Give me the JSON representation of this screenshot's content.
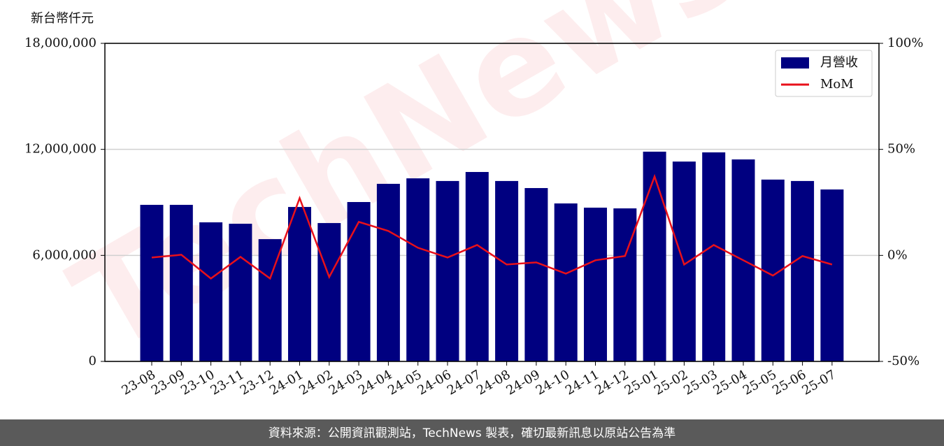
{
  "chart_data": {
    "type": "bar",
    "y_label": "新台幣仟元",
    "watermark": "TechNews",
    "footer": "資料來源：公開資訊觀測站，TechNews 製表，確切最新訊息以原站公告為準",
    "categories": [
      "23-08",
      "23-09",
      "23-10",
      "23-11",
      "23-12",
      "24-01",
      "24-02",
      "24-03",
      "24-04",
      "24-05",
      "24-06",
      "24-07",
      "24-08",
      "24-09",
      "24-10",
      "24-11",
      "24-12",
      "25-01",
      "25-02",
      "25-03",
      "25-04",
      "25-05",
      "25-06",
      "25-07"
    ],
    "series": [
      {
        "name": "月營收",
        "type": "bar",
        "color": "#000080",
        "values": [
          8860000,
          8860000,
          7870000,
          7790000,
          6920000,
          8740000,
          7830000,
          9020000,
          10050000,
          10360000,
          10210000,
          10720000,
          10210000,
          9810000,
          8940000,
          8700000,
          8660000,
          11870000,
          11310000,
          11830000,
          11430000,
          10290000,
          10210000,
          9730000
        ]
      },
      {
        "name": "MoM",
        "type": "line",
        "axis": "y2",
        "color": "#e8101a",
        "values": [
          -1.0,
          0.3,
          -10.9,
          -0.7,
          -10.9,
          27.0,
          -10.2,
          15.8,
          11.5,
          3.6,
          -1.0,
          4.9,
          -4.3,
          -3.3,
          -8.6,
          -2.3,
          -0.3,
          37.2,
          -4.3,
          4.9,
          -2.3,
          -9.5,
          -0.3,
          -4.3
        ]
      }
    ],
    "ylim": [
      0,
      18000000
    ],
    "yticks": [
      {
        "value": 0,
        "label": "0"
      },
      {
        "value": 6000000,
        "label": "6,000,000"
      },
      {
        "value": 12000000,
        "label": "12,000,000"
      },
      {
        "value": 18000000,
        "label": "18,000,000"
      }
    ],
    "y2lim": [
      -50,
      100
    ],
    "y2ticks": [
      {
        "value": -50,
        "label": "-50%"
      },
      {
        "value": 0,
        "label": "0%"
      },
      {
        "value": 50,
        "label": "50%"
      },
      {
        "value": 100,
        "label": "100%"
      }
    ],
    "grid": true,
    "legend": "upper-right"
  }
}
